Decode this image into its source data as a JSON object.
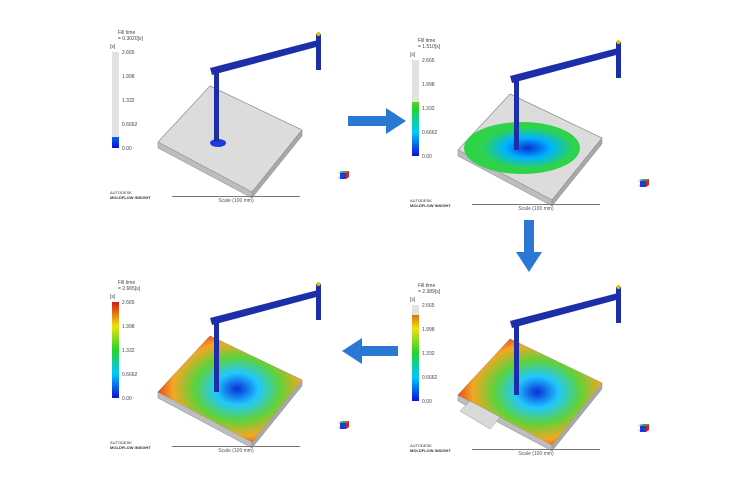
{
  "legend": {
    "title": "Fill time",
    "unit": "[s]",
    "ticks": [
      "2.665",
      "1.998",
      "1.332",
      "0.6662",
      "0.00"
    ],
    "max": 2.665
  },
  "branding": {
    "line1": "AUTODESK",
    "line2": "MOLDFLOW INSIGHT"
  },
  "scale_label": "Scale (100 mm)",
  "triad": {
    "z": "Z",
    "y": "Y",
    "x": "X",
    "v1": "-34",
    "v2": "-30"
  },
  "colors": {
    "runner": "#1c2fa8",
    "arrow": "#2a77d4",
    "unfilled": "#d9d9d9"
  },
  "panels": [
    {
      "id": "step1",
      "fill_time": "= 0.3020[s]",
      "fill_value": 0.302
    },
    {
      "id": "step2",
      "fill_time": "= 1.510[s]",
      "fill_value": 1.51
    },
    {
      "id": "step3",
      "fill_time": "= 2.389[s]",
      "fill_value": 2.389
    },
    {
      "id": "step4",
      "fill_time": "= 2.665[s]",
      "fill_value": 2.665
    }
  ],
  "sequence_arrows": [
    "arrow-right",
    "arrow-down",
    "arrow-left"
  ]
}
